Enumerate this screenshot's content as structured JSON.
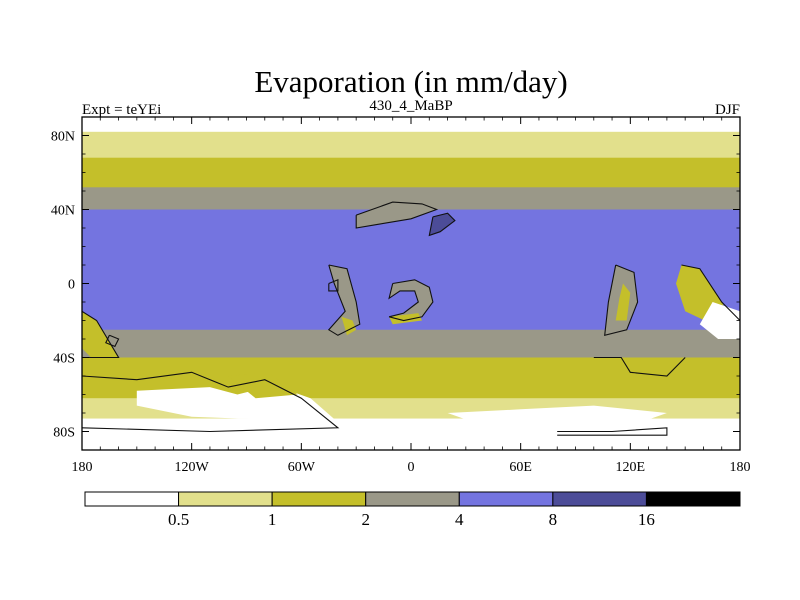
{
  "chart_data": {
    "type": "heatmap",
    "subtype": "filled-contour-map",
    "title": "Evaporation (in mm/day)",
    "left_string": "Expt = teYEi",
    "center_string": "430_4_MaBP",
    "right_string": "DJF",
    "x_axis": {
      "range": [
        -180,
        180
      ],
      "ticks": [
        -180,
        -120,
        -60,
        0,
        60,
        120,
        180
      ],
      "tick_labels": [
        "180",
        "120W",
        "60W",
        "0",
        "60E",
        "120E",
        "180"
      ]
    },
    "y_axis": {
      "range": [
        -90,
        90
      ],
      "ticks": [
        80,
        40,
        0,
        -40,
        -80
      ],
      "tick_labels": [
        "80N",
        "40N",
        "0",
        "40S",
        "80S"
      ]
    },
    "levels": [
      0.5,
      1,
      2,
      4,
      8,
      16
    ],
    "level_labels": [
      "0.5",
      "1",
      "2",
      "4",
      "8",
      "16"
    ],
    "colors": [
      "#ffffff",
      "#e2e08c",
      "#c4bf2a",
      "#9a9888",
      "#7474e0",
      "#4c4c98",
      "#000000"
    ],
    "zonal_bands_mm_per_day": [
      {
        "lat_from": 90,
        "lat_to": 82,
        "value": 0.3
      },
      {
        "lat_from": 82,
        "lat_to": 68,
        "value": 0.8
      },
      {
        "lat_from": 68,
        "lat_to": 52,
        "value": 1.5
      },
      {
        "lat_from": 52,
        "lat_to": 40,
        "value": 3.0
      },
      {
        "lat_from": 40,
        "lat_to": -25,
        "value": 5.5
      },
      {
        "lat_from": -25,
        "lat_to": -40,
        "value": 3.0
      },
      {
        "lat_from": -40,
        "lat_to": -52,
        "value": 1.6
      },
      {
        "lat_from": -52,
        "lat_to": -62,
        "value": 1.2
      },
      {
        "lat_from": -62,
        "lat_to": -73,
        "value": 0.7
      },
      {
        "lat_from": -73,
        "lat_to": -90,
        "value": 0.3
      }
    ],
    "regional_patches": [
      {
        "name": "north-continent",
        "value": 3.0,
        "poly": [
          [
            -30,
            37
          ],
          [
            -10,
            44
          ],
          [
            6,
            43
          ],
          [
            14,
            40
          ],
          [
            0,
            35
          ],
          [
            -18,
            32
          ],
          [
            -30,
            30
          ]
        ]
      },
      {
        "name": "north-lake",
        "value": 10.0,
        "poly": [
          [
            12,
            36
          ],
          [
            20,
            38
          ],
          [
            24,
            34
          ],
          [
            16,
            28
          ],
          [
            10,
            26
          ]
        ]
      },
      {
        "name": "west-continent-strip",
        "value": 3.0,
        "poly": [
          [
            -45,
            10
          ],
          [
            -35,
            8
          ],
          [
            -30,
            -10
          ],
          [
            -28,
            -22
          ],
          [
            -40,
            -28
          ],
          [
            -45,
            -25
          ],
          [
            -36,
            -15
          ],
          [
            -42,
            0
          ]
        ]
      },
      {
        "name": "west-continent-dry-core",
        "value": 1.5,
        "poly": [
          [
            -38,
            -18
          ],
          [
            -32,
            -20
          ],
          [
            -30,
            -25
          ],
          [
            -35,
            -28
          ]
        ]
      },
      {
        "name": "ring-continent",
        "value": 3.0,
        "poly": [
          [
            -10,
            0
          ],
          [
            2,
            2
          ],
          [
            10,
            -2
          ],
          [
            12,
            -10
          ],
          [
            6,
            -18
          ],
          [
            -4,
            -20
          ],
          [
            -12,
            -18
          ],
          [
            -4,
            -16
          ],
          [
            4,
            -10
          ],
          [
            2,
            -4
          ],
          [
            -6,
            -4
          ],
          [
            -12,
            -8
          ]
        ]
      },
      {
        "name": "ring-continent-dry-edge",
        "value": 1.5,
        "poly": [
          [
            -12,
            -18
          ],
          [
            4,
            -16
          ],
          [
            6,
            -20
          ],
          [
            -10,
            -22
          ]
        ]
      },
      {
        "name": "east-continent",
        "value": 3.0,
        "poly": [
          [
            112,
            10
          ],
          [
            122,
            6
          ],
          [
            124,
            -10
          ],
          [
            118,
            -25
          ],
          [
            106,
            -28
          ],
          [
            108,
            -10
          ]
        ]
      },
      {
        "name": "east-continent-dry-core",
        "value": 1.5,
        "poly": [
          [
            116,
            0
          ],
          [
            120,
            -5
          ],
          [
            118,
            -20
          ],
          [
            112,
            -20
          ],
          [
            114,
            -8
          ]
        ]
      },
      {
        "name": "far-east-continent",
        "value": 1.3,
        "poly": [
          [
            148,
            10
          ],
          [
            158,
            8
          ],
          [
            170,
            -10
          ],
          [
            175,
            -20
          ],
          [
            165,
            -22
          ],
          [
            150,
            -15
          ],
          [
            145,
            0
          ]
        ]
      },
      {
        "name": "far-east-dry-core",
        "value": 0.3,
        "poly": [
          [
            165,
            -10
          ],
          [
            180,
            -15
          ],
          [
            180,
            -30
          ],
          [
            168,
            -30
          ],
          [
            158,
            -22
          ]
        ]
      },
      {
        "name": "west-edge-land",
        "value": 1.3,
        "poly": [
          [
            -180,
            -15
          ],
          [
            -172,
            -20
          ],
          [
            -160,
            -40
          ],
          [
            -175,
            -40
          ],
          [
            -180,
            -35
          ]
        ]
      },
      {
        "name": "south-continent-dry",
        "value": 0.3,
        "poly": [
          [
            -150,
            -58
          ],
          [
            -110,
            -56
          ],
          [
            -95,
            -60
          ],
          [
            -75,
            -55
          ],
          [
            -55,
            -62
          ],
          [
            -40,
            -75
          ],
          [
            -120,
            -72
          ],
          [
            -150,
            -66
          ]
        ]
      },
      {
        "name": "south-continent-ridge",
        "value": 1.2,
        "poly": [
          [
            -100,
            -50
          ],
          [
            -78,
            -48
          ],
          [
            -62,
            -60
          ],
          [
            -85,
            -62
          ]
        ]
      },
      {
        "name": "south-east-dry",
        "value": 0.3,
        "poly": [
          [
            20,
            -70
          ],
          [
            60,
            -68
          ],
          [
            100,
            -66
          ],
          [
            140,
            -70
          ],
          [
            120,
            -77
          ],
          [
            40,
            -77
          ]
        ]
      }
    ],
    "coastline_outlines": [
      [
        [
          -30,
          37
        ],
        [
          -10,
          44
        ],
        [
          6,
          43
        ],
        [
          14,
          40
        ],
        [
          0,
          35
        ],
        [
          -18,
          32
        ],
        [
          -30,
          30
        ],
        [
          -30,
          37
        ]
      ],
      [
        [
          12,
          36
        ],
        [
          20,
          38
        ],
        [
          24,
          34
        ],
        [
          16,
          28
        ],
        [
          10,
          26
        ],
        [
          12,
          36
        ]
      ],
      [
        [
          -45,
          10
        ],
        [
          -35,
          8
        ],
        [
          -30,
          -10
        ],
        [
          -28,
          -22
        ],
        [
          -40,
          -28
        ],
        [
          -45,
          -25
        ],
        [
          -36,
          -15
        ],
        [
          -42,
          0
        ],
        [
          -45,
          10
        ]
      ],
      [
        [
          -10,
          0
        ],
        [
          2,
          2
        ],
        [
          10,
          -2
        ],
        [
          12,
          -10
        ],
        [
          6,
          -18
        ],
        [
          -4,
          -20
        ],
        [
          -12,
          -18
        ],
        [
          -4,
          -16
        ],
        [
          4,
          -10
        ],
        [
          2,
          -4
        ],
        [
          -6,
          -4
        ],
        [
          -12,
          -8
        ],
        [
          -10,
          0
        ]
      ],
      [
        [
          112,
          10
        ],
        [
          122,
          6
        ],
        [
          124,
          -10
        ],
        [
          118,
          -25
        ],
        [
          106,
          -28
        ],
        [
          108,
          -10
        ],
        [
          112,
          10
        ]
      ],
      [
        [
          148,
          10
        ],
        [
          158,
          8
        ],
        [
          170,
          -10
        ],
        [
          180,
          -20
        ]
      ],
      [
        [
          -180,
          -15
        ],
        [
          -172,
          -20
        ],
        [
          -160,
          -40
        ],
        [
          -180,
          -40
        ]
      ],
      [
        [
          -180,
          -50
        ],
        [
          -150,
          -52
        ],
        [
          -120,
          -48
        ],
        [
          -100,
          -56
        ],
        [
          -80,
          -52
        ],
        [
          -60,
          -62
        ],
        [
          -40,
          -78
        ],
        [
          -110,
          -80
        ],
        [
          -180,
          -78
        ]
      ],
      [
        [
          -165,
          -28
        ],
        [
          -160,
          -30
        ],
        [
          -162,
          -34
        ],
        [
          -167,
          -32
        ],
        [
          -165,
          -28
        ]
      ],
      [
        [
          -45,
          0
        ],
        [
          -40,
          2
        ],
        [
          -40,
          -4
        ],
        [
          -45,
          -4
        ],
        [
          -45,
          0
        ]
      ],
      [
        [
          80,
          -80
        ],
        [
          110,
          -80
        ],
        [
          140,
          -78
        ],
        [
          140,
          -82
        ],
        [
          80,
          -82
        ]
      ],
      [
        [
          100,
          -40
        ],
        [
          115,
          -40
        ],
        [
          120,
          -48
        ],
        [
          140,
          -50
        ],
        [
          150,
          -40
        ]
      ]
    ]
  }
}
